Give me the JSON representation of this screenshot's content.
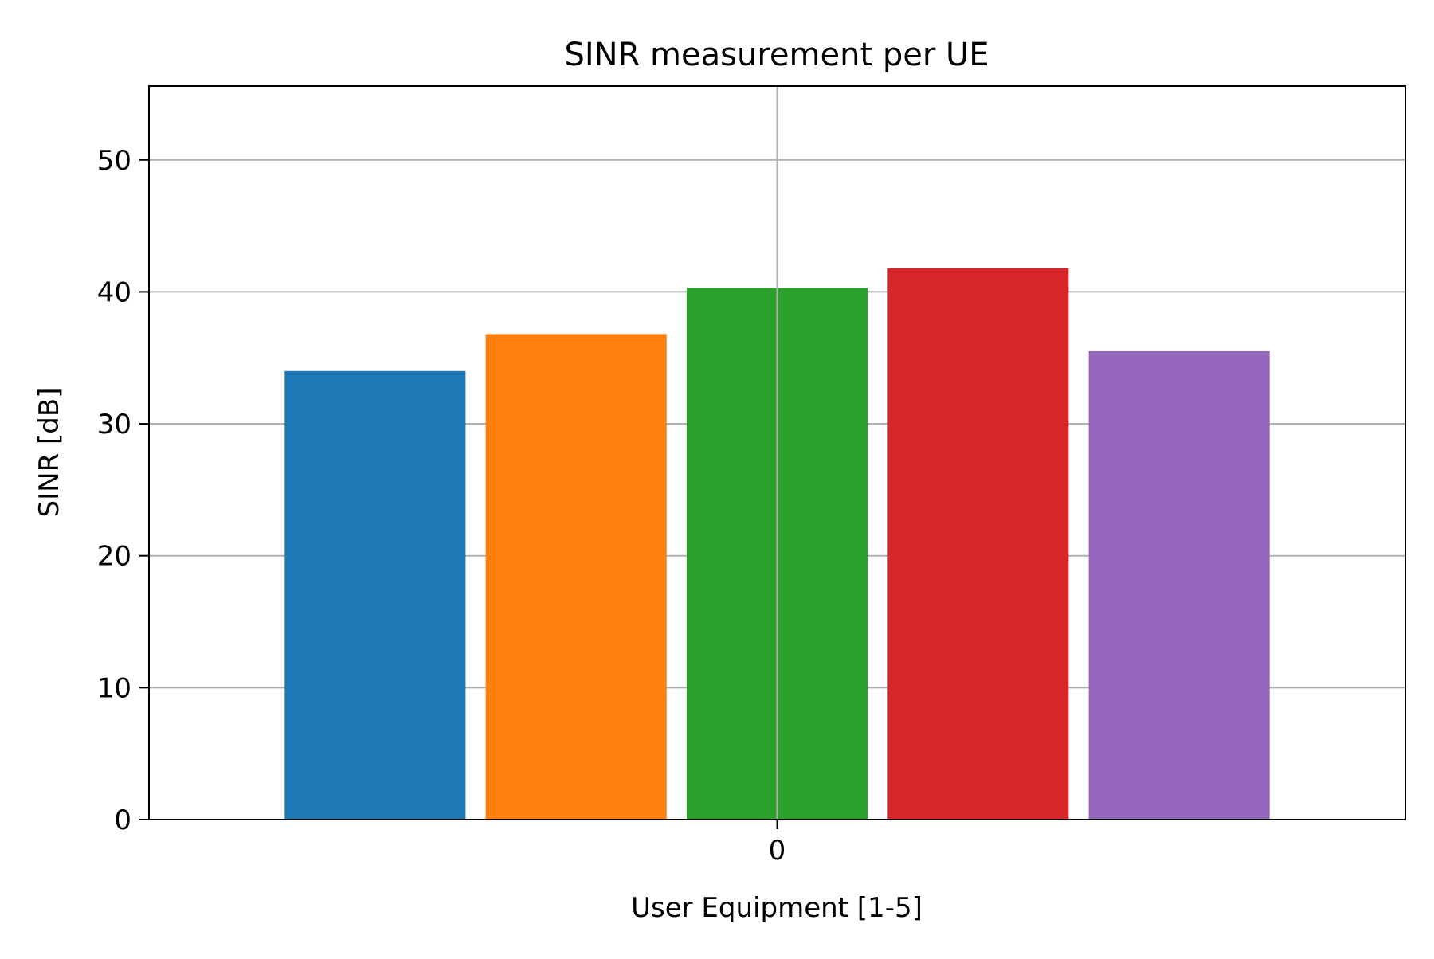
{
  "chart_data": {
    "type": "bar",
    "title": "SINR measurement per UE",
    "xlabel": "User Equipment [1-5]",
    "ylabel": "SINR [dB]",
    "categories": [
      "0"
    ],
    "series": [
      {
        "values": [
          34.0
        ],
        "color": "#1f77b4"
      },
      {
        "values": [
          36.8
        ],
        "color": "#ff7f0e"
      },
      {
        "values": [
          40.3
        ],
        "color": "#2ca02c"
      },
      {
        "values": [
          41.8
        ],
        "color": "#d62728"
      },
      {
        "values": [
          35.5
        ],
        "color": "#9467bd"
      }
    ],
    "ylim": [
      0,
      55.6
    ],
    "yticks": [
      0,
      10,
      20,
      30,
      40,
      50
    ],
    "xticks": [
      {
        "value": 0,
        "label": "0"
      }
    ],
    "xlim": [
      -0.5,
      0.5
    ],
    "grid": true,
    "legend": "none"
  }
}
